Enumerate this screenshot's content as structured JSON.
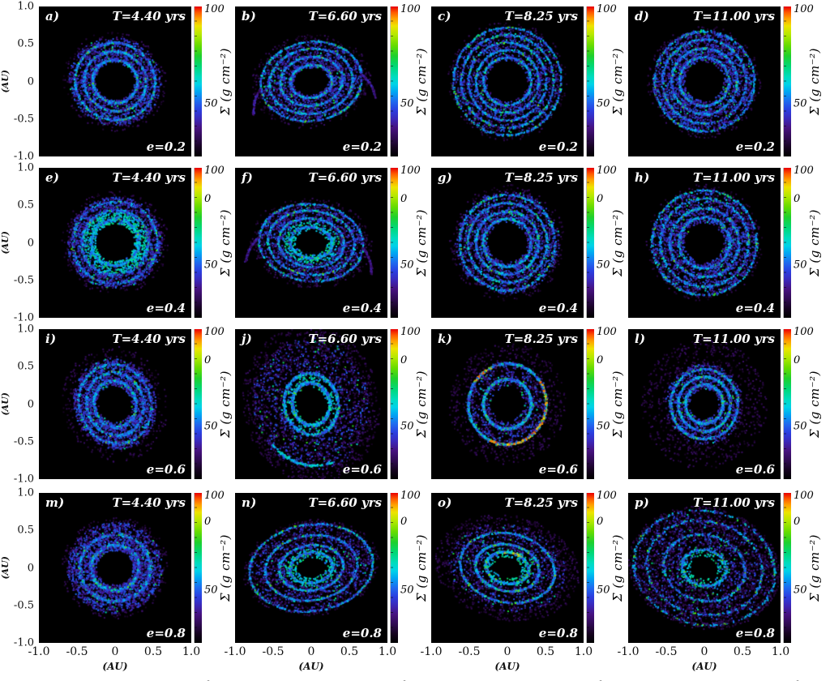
{
  "chart_data": {
    "type": "heatmap",
    "title": "",
    "grid": {
      "rows": 4,
      "cols": 4
    },
    "column_times_yrs": [
      4.4,
      6.6,
      8.25,
      11.0
    ],
    "row_eccentricities": [
      0.2,
      0.4,
      0.6,
      0.8
    ],
    "x_axis": {
      "label": "(AU)",
      "ticks": [
        "-1.0",
        "-0.5",
        "0",
        "0.5",
        "1.0"
      ],
      "range": [
        -1.0,
        1.0
      ]
    },
    "y_axis": {
      "label": "(AU)",
      "ticks": [
        "1.0",
        "0.5",
        "0",
        "-0.5",
        "-1.0"
      ],
      "range": [
        -1.0,
        1.0
      ]
    },
    "colorbar": {
      "label": "Σ (g cm⁻²)",
      "ticks": [
        "100",
        "50",
        "0"
      ],
      "range": [
        0,
        100
      ]
    },
    "colormap_stops": [
      [
        0.0,
        "#000000"
      ],
      [
        0.06,
        "#15031f"
      ],
      [
        0.12,
        "#2d0a4e"
      ],
      [
        0.19,
        "#46127f"
      ],
      [
        0.25,
        "#3b28b8"
      ],
      [
        0.31,
        "#2b3fe0"
      ],
      [
        0.37,
        "#1e6df0"
      ],
      [
        0.43,
        "#00a6f2"
      ],
      [
        0.48,
        "#00d2e8"
      ],
      [
        0.53,
        "#00dcc0"
      ],
      [
        0.6,
        "#00d878"
      ],
      [
        0.67,
        "#1ed02e"
      ],
      [
        0.74,
        "#66dc00"
      ],
      [
        0.81,
        "#b2e800"
      ],
      [
        0.87,
        "#eee400"
      ],
      [
        0.92,
        "#ffa000"
      ],
      [
        0.96,
        "#ff5a00"
      ],
      [
        1.0,
        "#e80000"
      ]
    ],
    "panels": [
      {
        "letter": "a)",
        "time": "T=4.40 yrs",
        "ecc": "e=0.2",
        "render": {
          "rin": 0.26,
          "rout": 0.62,
          "q": 0.95,
          "rot": -20,
          "rings": [
            0.3,
            0.42,
            0.54
          ],
          "ringW": 0.022,
          "ringP": 0.5,
          "fillP": 0.4,
          "haloExt": 0.7,
          "hot": 0.1,
          "n": 3200
        }
      },
      {
        "letter": "b)",
        "time": "T=6.60 yrs",
        "ecc": "e=0.2",
        "render": {
          "rin": 0.23,
          "rout": 0.68,
          "q": 0.78,
          "rot": 8,
          "rings": [
            0.28,
            0.42,
            0.56,
            0.68
          ],
          "ringW": 0.022,
          "ringP": 0.52,
          "fillP": 0.33,
          "haloExt": 0.8,
          "hot": 0.1,
          "tails": 1,
          "n": 3400
        }
      },
      {
        "letter": "c)",
        "time": "T=8.25 yrs",
        "ecc": "e=0.2",
        "render": {
          "rin": 0.27,
          "rout": 0.72,
          "q": 1.0,
          "rot": 0,
          "rings": [
            0.32,
            0.42,
            0.52,
            0.62,
            0.72
          ],
          "ringW": 0.02,
          "ringP": 0.55,
          "fillP": 0.33,
          "haloExt": 0.8,
          "hot": 0.1,
          "n": 3500
        }
      },
      {
        "letter": "d)",
        "time": "T=11.00 yrs",
        "ecc": "e=0.2",
        "render": {
          "rin": 0.26,
          "rout": 0.68,
          "q": 1.0,
          "rot": 0,
          "rings": [
            0.33,
            0.44,
            0.56,
            0.67
          ],
          "ringW": 0.024,
          "ringP": 0.45,
          "fillP": 0.43,
          "haloExt": 0.76,
          "hot": 0.09,
          "n": 3500
        }
      },
      {
        "letter": "e)",
        "time": "T=4.40 yrs",
        "ecc": "e=0.4",
        "render": {
          "rin": 0.26,
          "rout": 0.64,
          "q": 0.96,
          "rot": 12,
          "rings": [
            0.32,
            0.45,
            0.57
          ],
          "ringW": 0.03,
          "ringP": 0.34,
          "fillP": 0.54,
          "haloExt": 0.72,
          "hot": 0.08,
          "innerBright": 1,
          "n": 3300
        }
      },
      {
        "letter": "f)",
        "time": "T=6.60 yrs",
        "ecc": "e=0.4",
        "render": {
          "rin": 0.21,
          "rout": 0.7,
          "q": 0.74,
          "rot": -6,
          "rings": [
            0.28,
            0.44,
            0.58,
            0.7
          ],
          "ringW": 0.022,
          "ringP": 0.5,
          "fillP": 0.33,
          "haloExt": 0.82,
          "hot": 0.12,
          "innerBright": 1,
          "tails": 1,
          "n": 3500
        }
      },
      {
        "letter": "g)",
        "time": "T=8.25 yrs",
        "ecc": "e=0.4",
        "render": {
          "rin": 0.26,
          "rout": 0.7,
          "q": 1.0,
          "rot": 0,
          "rings": [
            0.32,
            0.42,
            0.53,
            0.64
          ],
          "ringW": 0.022,
          "ringP": 0.5,
          "fillP": 0.38,
          "haloExt": 0.78,
          "hot": 0.1,
          "n": 3500
        }
      },
      {
        "letter": "h)",
        "time": "T=11.00 yrs",
        "ecc": "e=0.4",
        "render": {
          "rin": 0.26,
          "rout": 0.7,
          "q": 1.0,
          "rot": 0,
          "rings": [
            0.34,
            0.46,
            0.59,
            0.7
          ],
          "ringW": 0.026,
          "ringP": 0.45,
          "fillP": 0.43,
          "haloExt": 0.78,
          "hot": 0.1,
          "n": 3500
        }
      },
      {
        "letter": "i)",
        "time": "T=4.40 yrs",
        "ecc": "e=0.6",
        "render": {
          "rin": 0.22,
          "rout": 0.55,
          "q": 1.12,
          "rot": 18,
          "rings": [
            0.28,
            0.38,
            0.48
          ],
          "ringW": 0.026,
          "ringP": 0.4,
          "fillP": 0.48,
          "haloExt": 0.7,
          "hot": 0.08,
          "n": 3100
        }
      },
      {
        "letter": "j)",
        "time": "T=6.60 yrs",
        "ecc": "e=0.6",
        "render": {
          "rin": 0.2,
          "rout": 0.78,
          "q": 1.15,
          "rot": 12,
          "rings": [
            0.25,
            0.36
          ],
          "ringW": 0.026,
          "ringP": 0.34,
          "fillP": 0.3,
          "haloExt": 0.92,
          "hot": 0.1,
          "innerBright": 1,
          "arc": {
            "r": 0.72,
            "a0": -2.6,
            "a1": -1.4
          },
          "n": 3700
        }
      },
      {
        "letter": "k)",
        "time": "T=8.25 yrs",
        "ecc": "e=0.6",
        "render": {
          "rin": 0.22,
          "rout": 0.55,
          "q": 1.04,
          "rot": -12,
          "rings": [
            0.32,
            0.52
          ],
          "ringW": 0.02,
          "ringP": 0.6,
          "fillP": 0.18,
          "haloExt": 0.78,
          "hot": 0.16,
          "red": 1,
          "n": 3300
        }
      },
      {
        "letter": "l)",
        "time": "T=11.00 yrs",
        "ecc": "e=0.6",
        "render": {
          "rin": 0.19,
          "rout": 0.52,
          "q": 1.04,
          "rot": 0,
          "rings": [
            0.25,
            0.35,
            0.45
          ],
          "ringW": 0.022,
          "ringP": 0.55,
          "fillP": 0.23,
          "haloExt": 0.84,
          "hot": 0.12,
          "n": 3300
        }
      },
      {
        "letter": "m)",
        "time": "T=4.40 yrs",
        "ecc": "e=0.8",
        "render": {
          "rin": 0.24,
          "rout": 0.64,
          "q": 0.95,
          "rot": 10,
          "rings": [
            0.32,
            0.47
          ],
          "ringW": 0.035,
          "ringP": 0.3,
          "fillP": 0.58,
          "haloExt": 0.72,
          "hot": 0.08,
          "n": 3300
        }
      },
      {
        "letter": "n)",
        "time": "T=6.60 yrs",
        "ecc": "e=0.8",
        "render": {
          "rin": 0.19,
          "rout": 0.84,
          "q": 0.7,
          "rot": 8,
          "rings": [
            0.29,
            0.43,
            0.62,
            0.83
          ],
          "ringW": 0.022,
          "ringP": 0.5,
          "fillP": 0.28,
          "haloExt": 0.92,
          "hot": 0.12,
          "innerBright": 1,
          "n": 3700
        }
      },
      {
        "letter": "o)",
        "time": "T=8.25 yrs",
        "ecc": "e=0.8",
        "render": {
          "rin": 0.19,
          "rout": 0.8,
          "q": 0.72,
          "rot": -12,
          "rings": [
            0.29,
            0.43,
            0.64
          ],
          "ringW": 0.022,
          "ringP": 0.5,
          "fillP": 0.23,
          "haloExt": 0.98,
          "hot": 0.14,
          "innerBright": 1,
          "orange": 1,
          "n": 3700
        }
      },
      {
        "letter": "p)",
        "time": "T=11.00 yrs",
        "ecc": "e=0.8",
        "render": {
          "rin": 0.18,
          "rout": 0.95,
          "q": 0.8,
          "rot": -12,
          "rings": [
            0.3,
            0.55,
            0.78,
            0.95
          ],
          "ringW": 0.03,
          "ringP": 0.33,
          "fillP": 0.25,
          "haloExt": 1.02,
          "hot": 0.1,
          "innerBright": 1,
          "n": 3900
        }
      }
    ]
  }
}
